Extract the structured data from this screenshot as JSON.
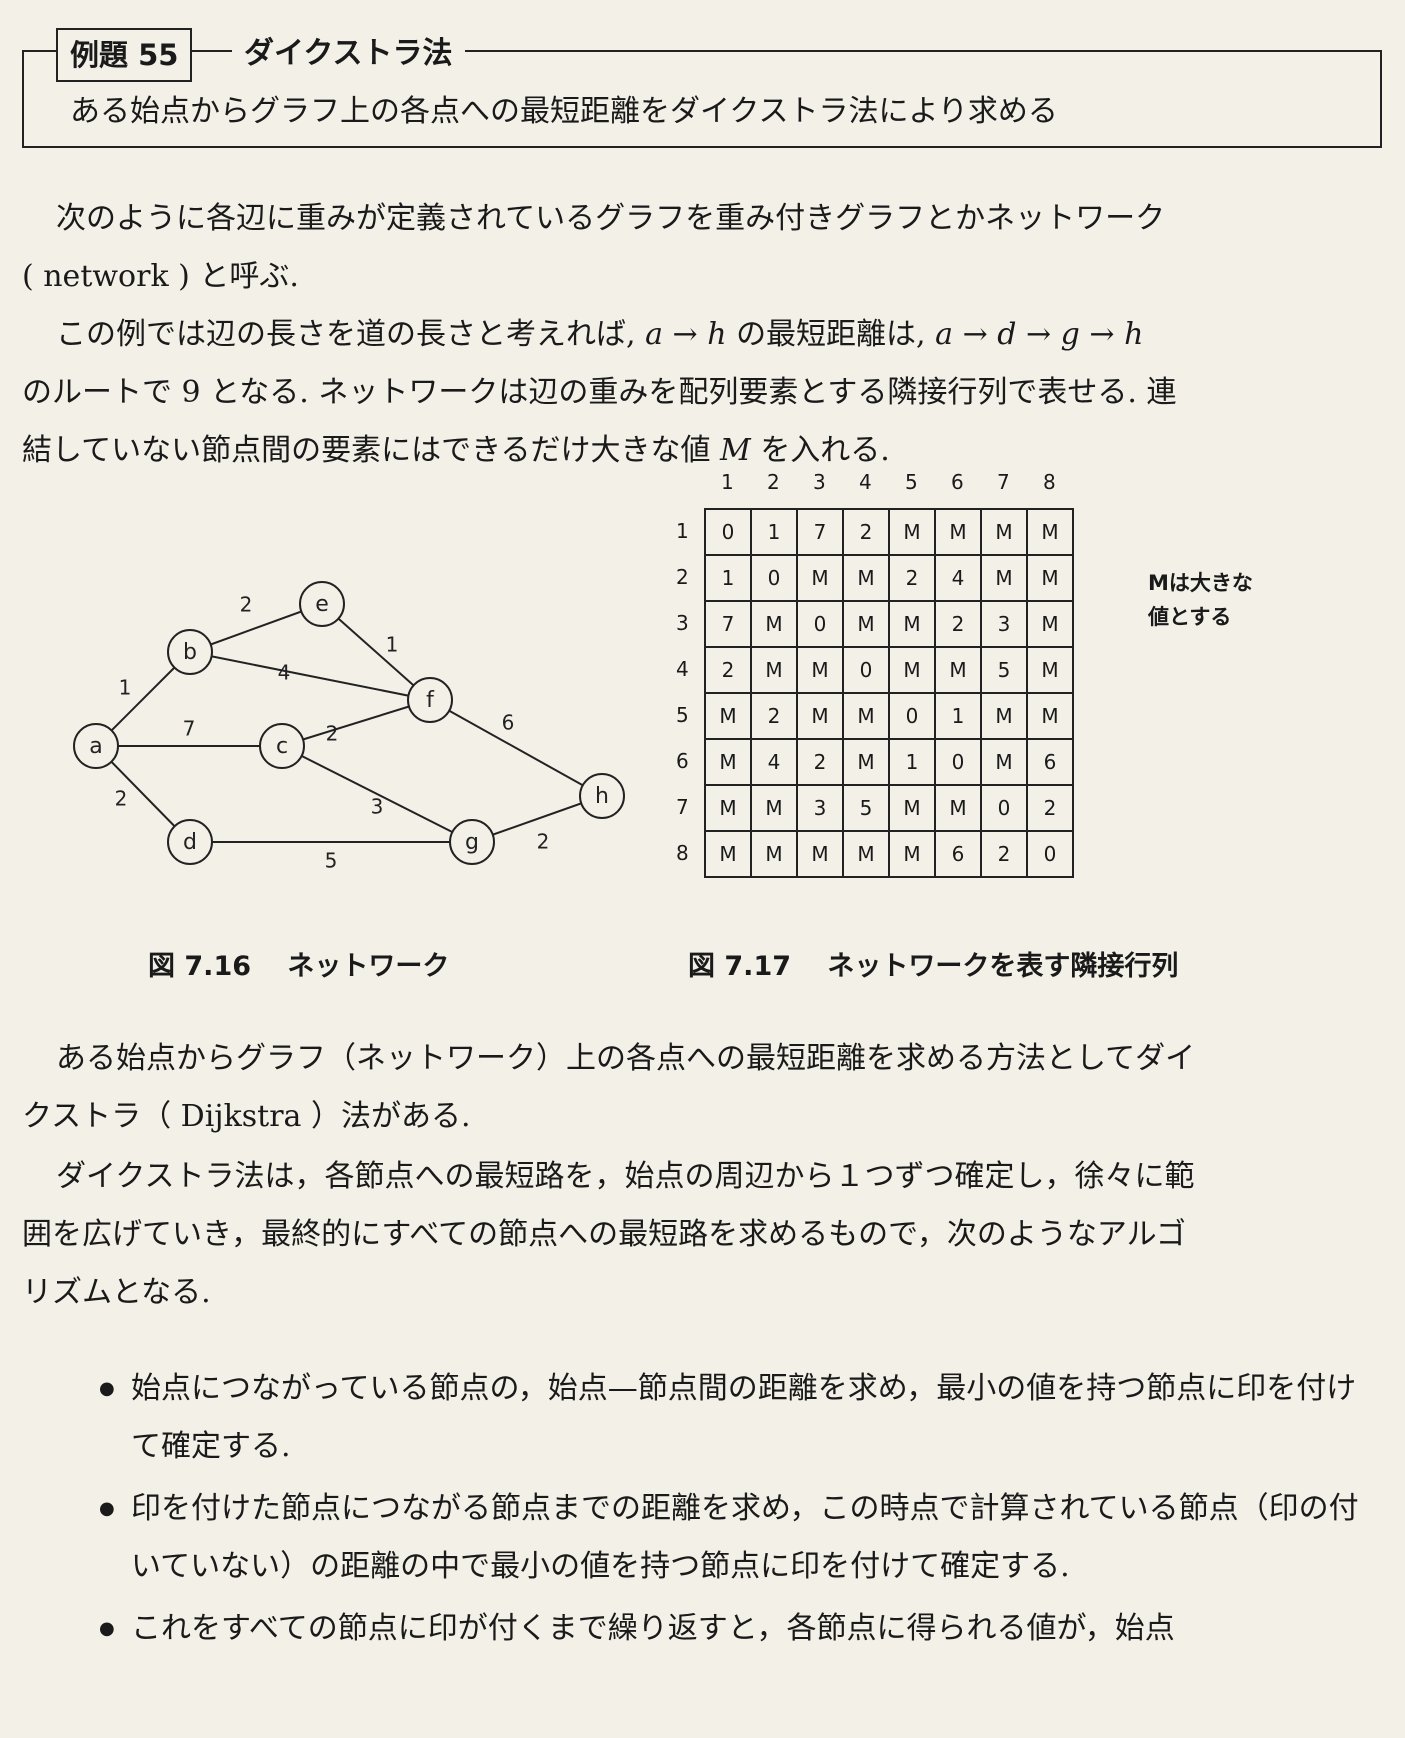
{
  "example": {
    "label": "例題 55",
    "title": "ダイクストラ法",
    "subtitle": "ある始点からグラフ上の各点への最短距離をダイクストラ法により求める"
  },
  "intro": {
    "para1_a": "次のように各辺に重みが定義されているグラフを重み付きグラフとかネットワーク",
    "para1_b": "( network ) と呼ぶ.",
    "para2_a1": "この例では辺の長さを道の長さと考えれば,",
    "path_ah": "a → h",
    "para2_a2": "の最短距離は,",
    "path_route": "a → d → g → h",
    "para2_b": "のルートで 9 となる. ネットワークは辺の重みを配列要素とする隣接行列で表せる. 連",
    "para2_c1": "結していない節点間の要素にはできるだけ大きな値",
    "M": "M",
    "para2_c2": "を入れる."
  },
  "graph": {
    "nodes": [
      "a",
      "b",
      "c",
      "d",
      "e",
      "f",
      "g",
      "h"
    ],
    "edges": [
      {
        "from": "a",
        "to": "b",
        "w": "1"
      },
      {
        "from": "a",
        "to": "c",
        "w": "7"
      },
      {
        "from": "a",
        "to": "d",
        "w": "2"
      },
      {
        "from": "b",
        "to": "e",
        "w": "2"
      },
      {
        "from": "b",
        "to": "f",
        "w": "4"
      },
      {
        "from": "e",
        "to": "f",
        "w": "1"
      },
      {
        "from": "c",
        "to": "f",
        "w": "2"
      },
      {
        "from": "c",
        "to": "g",
        "w": "3"
      },
      {
        "from": "d",
        "to": "g",
        "w": "5"
      },
      {
        "from": "f",
        "to": "h",
        "w": "6"
      },
      {
        "from": "g",
        "to": "h",
        "w": "2"
      }
    ]
  },
  "matrix": {
    "headers": [
      "1",
      "2",
      "3",
      "4",
      "5",
      "6",
      "7",
      "8"
    ],
    "rows": [
      [
        "0",
        "1",
        "7",
        "2",
        "M",
        "M",
        "M",
        "M"
      ],
      [
        "1",
        "0",
        "M",
        "M",
        "2",
        "4",
        "M",
        "M"
      ],
      [
        "7",
        "M",
        "0",
        "M",
        "M",
        "2",
        "3",
        "M"
      ],
      [
        "2",
        "M",
        "M",
        "0",
        "M",
        "M",
        "5",
        "M"
      ],
      [
        "M",
        "2",
        "M",
        "M",
        "0",
        "1",
        "M",
        "M"
      ],
      [
        "M",
        "4",
        "2",
        "M",
        "1",
        "0",
        "M",
        "6"
      ],
      [
        "M",
        "M",
        "3",
        "5",
        "M",
        "M",
        "0",
        "2"
      ],
      [
        "M",
        "M",
        "M",
        "M",
        "M",
        "6",
        "2",
        "0"
      ]
    ],
    "note_line1": "Mは大きな",
    "note_line2": "値とする"
  },
  "captions": {
    "fig716": "図 7.16　 ネットワーク",
    "fig717": "図 7.17　 ネットワークを表す隣接行列"
  },
  "body": {
    "para3_a": "ある始点からグラフ（ネットワーク）上の各点への最短距離を求める方法としてダイ",
    "para3_b": "クストラ（ Dijkstra ）法がある.",
    "para4_a": "ダイクストラ法は，各節点への最短路を，始点の周辺から１つずつ確定し，徐々に範",
    "para4_b": "囲を広げていき，最終的にすべての節点への最短路を求めるもので，次のようなアルゴ",
    "para4_c": "リズムとなる."
  },
  "bullets": [
    "始点につながっている節点の，始点—節点間の距離を求め，最小の値を持つ節点に印を付けて確定する.",
    "印を付けた節点につながる節点までの距離を求め，この時点で計算されている節点（印の付いていない）の距離の中で最小の値を持つ節点に印を付けて確定する.",
    "これをすべての節点に印が付くまで繰り返すと，各節点に得られる値が，始点"
  ]
}
